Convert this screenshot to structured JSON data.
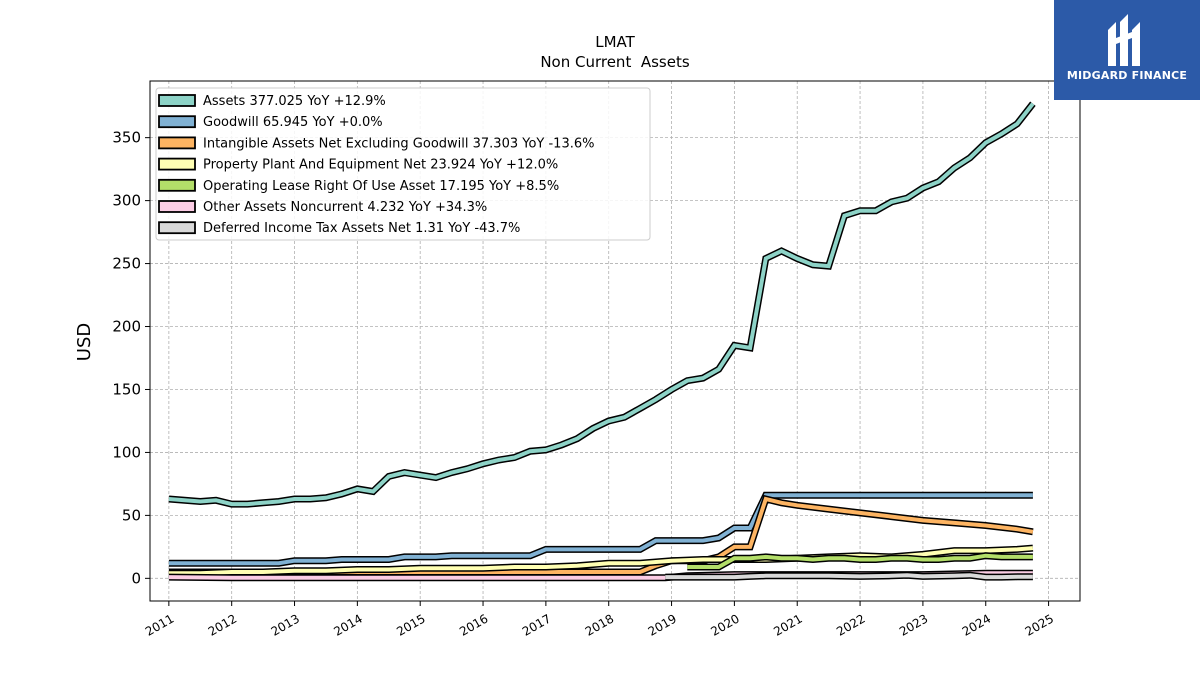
{
  "brand": {
    "name": "MIDGARD FINANCE",
    "bg_color": "#2c5aa8"
  },
  "chart_data": {
    "type": "line",
    "title": "LMAT",
    "subtitle": "Non Current  Assets",
    "ylabel": "USD",
    "xlabel": "",
    "xlim": [
      2010.7,
      2025.5
    ],
    "ylim": [
      -18,
      395
    ],
    "yticks": [
      0,
      50,
      100,
      150,
      200,
      250,
      300,
      350
    ],
    "xticks": [
      2011,
      2012,
      2013,
      2014,
      2015,
      2016,
      2017,
      2018,
      2019,
      2020,
      2021,
      2022,
      2023,
      2024,
      2025
    ],
    "grid": true,
    "legend_position": "top-left",
    "series": [
      {
        "name": "Assets  377.025 YoY +12.9%",
        "color": "#8dd3c7",
        "x": [
          2011.0,
          2011.25,
          2011.5,
          2011.75,
          2012.0,
          2012.25,
          2012.5,
          2012.75,
          2013.0,
          2013.25,
          2013.5,
          2013.75,
          2014.0,
          2014.25,
          2014.5,
          2014.75,
          2015.0,
          2015.25,
          2015.5,
          2015.75,
          2016.0,
          2016.25,
          2016.5,
          2016.75,
          2017.0,
          2017.25,
          2017.5,
          2017.75,
          2018.0,
          2018.25,
          2018.5,
          2018.75,
          2019.0,
          2019.25,
          2019.5,
          2019.75,
          2020.0,
          2020.25,
          2020.5,
          2020.75,
          2021.0,
          2021.25,
          2021.5,
          2021.75,
          2022.0,
          2022.25,
          2022.5,
          2022.75,
          2023.0,
          2023.25,
          2023.5,
          2023.75,
          2024.0,
          2024.25,
          2024.5,
          2024.75
        ],
        "values": [
          63,
          62,
          61,
          62,
          59,
          59,
          60,
          61,
          63,
          63,
          64,
          67,
          71,
          69,
          81,
          84,
          82,
          80,
          84,
          87,
          91,
          94,
          96,
          101,
          102,
          106,
          111,
          119,
          125,
          128,
          135,
          142,
          150,
          157,
          159,
          166,
          185,
          183,
          254,
          260,
          254,
          249,
          248,
          288,
          292,
          292,
          299,
          302,
          310,
          315,
          326,
          334,
          346,
          353,
          361,
          377
        ]
      },
      {
        "name": "Goodwill  65.945 YoY +0.0%",
        "color": "#80b1d3",
        "x": [
          2011.0,
          2011.25,
          2011.5,
          2011.75,
          2012.0,
          2012.25,
          2012.5,
          2012.75,
          2013.0,
          2013.25,
          2013.5,
          2013.75,
          2014.0,
          2014.25,
          2014.5,
          2014.75,
          2015.0,
          2015.25,
          2015.5,
          2015.75,
          2016.0,
          2016.25,
          2016.5,
          2016.75,
          2017.0,
          2017.25,
          2017.5,
          2017.75,
          2018.0,
          2018.25,
          2018.5,
          2018.75,
          2019.0,
          2019.25,
          2019.5,
          2019.75,
          2020.0,
          2020.25,
          2020.5,
          2020.75,
          2021.0,
          2021.25,
          2021.5,
          2021.75,
          2022.0,
          2022.25,
          2022.5,
          2022.75,
          2023.0,
          2023.25,
          2023.5,
          2023.75,
          2024.0,
          2024.25,
          2024.5,
          2024.75
        ],
        "values": [
          12,
          12,
          12,
          12,
          12,
          12,
          12,
          12,
          14,
          14,
          14,
          15,
          15,
          15,
          15,
          17,
          17,
          17,
          18,
          18,
          18,
          18,
          18,
          18,
          23,
          23,
          23,
          23,
          23,
          23,
          23,
          30,
          30,
          30,
          30,
          32,
          40,
          40,
          66,
          66,
          66,
          66,
          66,
          66,
          66,
          66,
          66,
          66,
          66,
          66,
          66,
          66,
          66,
          66,
          66,
          66
        ]
      },
      {
        "name": "Intangible Assets Net Excluding Goodwill  37.303 YoY -13.6%",
        "color": "#fdb462",
        "x": [
          2011.0,
          2012.0,
          2013.0,
          2014.0,
          2015.0,
          2016.0,
          2017.0,
          2017.5,
          2018.0,
          2018.5,
          2018.75,
          2019.0,
          2019.5,
          2019.75,
          2020.0,
          2020.25,
          2020.5,
          2020.75,
          2021.0,
          2021.5,
          2022.0,
          2022.5,
          2023.0,
          2023.5,
          2024.0,
          2024.5,
          2024.75
        ],
        "values": [
          5,
          5,
          5,
          5,
          5,
          5,
          5,
          5,
          5,
          5,
          10,
          14,
          14,
          17,
          25,
          25,
          63,
          60,
          58,
          55,
          52,
          49,
          46,
          44,
          42,
          39,
          37
        ]
      },
      {
        "name": "Property Plant And Equipment Net  23.924 YoY +12.0%",
        "color": "#ffffb3",
        "x": [
          2011.0,
          2011.5,
          2012.0,
          2012.5,
          2013.0,
          2013.5,
          2014.0,
          2014.5,
          2015.0,
          2015.5,
          2016.0,
          2016.5,
          2017.0,
          2017.5,
          2018.0,
          2018.5,
          2019.0,
          2019.5,
          2020.0,
          2020.5,
          2021.0,
          2021.5,
          2022.0,
          2022.5,
          2023.0,
          2023.5,
          2024.0,
          2024.5,
          2024.75
        ],
        "values": [
          4,
          4,
          5,
          5,
          6,
          6,
          7,
          7,
          8,
          8,
          8,
          9,
          9,
          10,
          12,
          12,
          14,
          15,
          15,
          15,
          16,
          17,
          18,
          17,
          19,
          22,
          22,
          23,
          24
        ]
      },
      {
        "name": "Operating Lease Right Of Use Asset  17.195 YoY +8.5%",
        "color": "#b3de69",
        "x": [
          2019.25,
          2019.5,
          2019.75,
          2020.0,
          2020.25,
          2020.5,
          2020.75,
          2021.0,
          2021.25,
          2021.5,
          2021.75,
          2022.0,
          2022.25,
          2022.5,
          2022.75,
          2023.0,
          2023.25,
          2023.5,
          2023.75,
          2024.0,
          2024.25,
          2024.5,
          2024.75
        ],
        "values": [
          9,
          9,
          9,
          16,
          16,
          17,
          16,
          16,
          15,
          16,
          16,
          15,
          15,
          16,
          16,
          15,
          15,
          16,
          16,
          18,
          17,
          17,
          17
        ]
      },
      {
        "name": "Other Assets Noncurrent  4.232 YoY +34.3%",
        "color": "#fccde5",
        "x": [
          2011.0,
          2012.0,
          2013.0,
          2014.0,
          2015.0,
          2016.0,
          2017.0,
          2018.0,
          2018.9,
          2019.25,
          2020.0,
          2021.0,
          2022.0,
          2023.0,
          2024.0,
          2024.75
        ],
        "values": [
          1,
          0.5,
          0.5,
          0.5,
          0.5,
          0.5,
          0.5,
          0.5,
          0.5,
          2,
          3,
          3,
          3,
          3,
          4,
          4
        ]
      },
      {
        "name": "Deferred Income Tax Assets Net  1.31 YoY -43.7%",
        "color": "#d9d9d9",
        "x": [
          2018.9,
          2019.25,
          2019.5,
          2019.75,
          2020.0,
          2020.25,
          2020.5,
          2020.75,
          2021.0,
          2021.5,
          2022.0,
          2022.5,
          2022.75,
          2023.0,
          2023.5,
          2023.75,
          2024.0,
          2024.25,
          2024.5,
          2024.75
        ],
        "values": [
          1,
          1,
          1,
          1,
          1,
          1.5,
          2,
          2,
          2,
          2,
          1.5,
          2,
          2.5,
          1.5,
          2,
          2.5,
          1,
          1,
          1.2,
          1.3
        ]
      }
    ]
  }
}
